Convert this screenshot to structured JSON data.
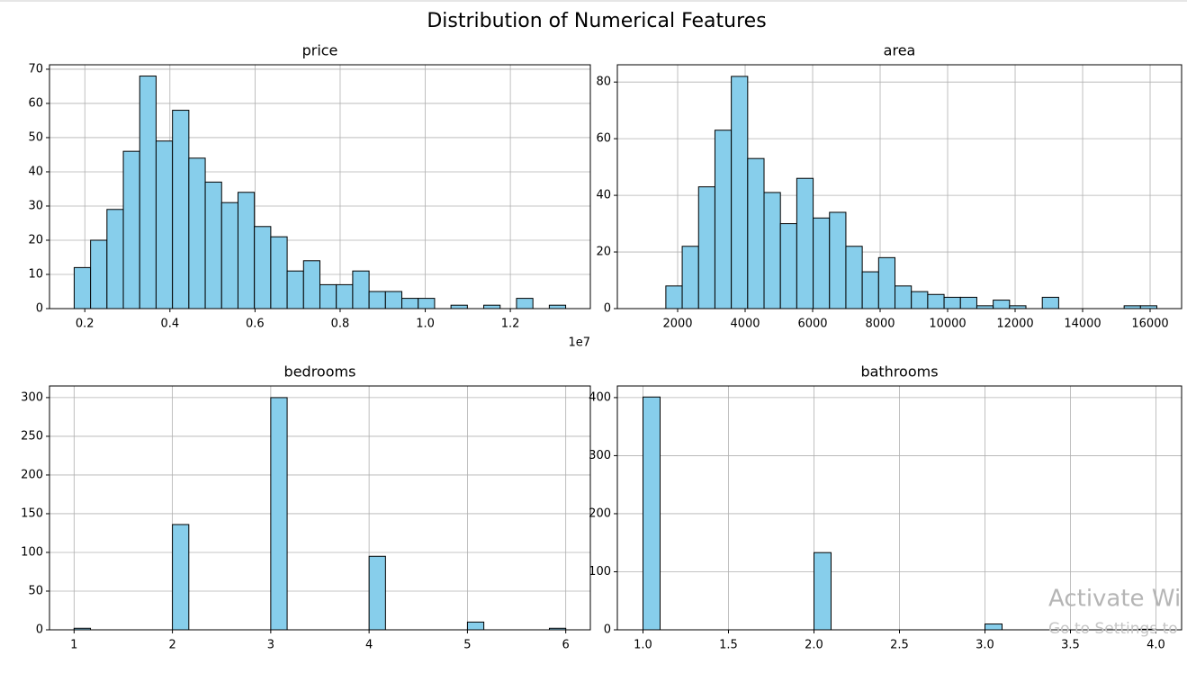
{
  "title": "Distribution of Numerical Features",
  "chart_data": [
    {
      "type": "histogram",
      "title": "price",
      "x_offset_label": "1e7",
      "bins": [
        0.175,
        0.2135,
        0.252,
        0.2905,
        0.329,
        0.3675,
        0.406,
        0.4445,
        0.483,
        0.5215,
        0.56,
        0.5985,
        0.637,
        0.6755,
        0.714,
        0.7525,
        0.791,
        0.8295,
        0.868,
        0.9065,
        0.945,
        0.9835,
        1.022,
        1.0605,
        1.099,
        1.1375,
        1.176,
        1.2145,
        1.253,
        1.2915,
        1.33
      ],
      "values": [
        12,
        20,
        29,
        46,
        68,
        49,
        58,
        44,
        37,
        31,
        34,
        24,
        21,
        11,
        14,
        7,
        7,
        11,
        5,
        5,
        3,
        3,
        0,
        1,
        0,
        1,
        0,
        3,
        0,
        1
      ],
      "color": "#87ceeb",
      "edgecolor": "#000000",
      "xlim": [
        0.117,
        1.388
      ],
      "ylim": [
        0,
        71.3
      ],
      "xticks": [
        0.2,
        0.4,
        0.6,
        0.8,
        {
          "value": 1,
          "label": "1.0"
        },
        1.2
      ],
      "yticks": [
        0,
        10,
        20,
        30,
        40,
        50,
        60,
        70
      ],
      "grid": true
    },
    {
      "type": "histogram",
      "title": "area",
      "bins": [
        1650,
        2135,
        2620,
        3105,
        3590,
        4075,
        4560,
        5045,
        5530,
        6015,
        6500,
        6985,
        7470,
        7955,
        8440,
        8925,
        9410,
        9895,
        10380,
        10865,
        11350,
        11835,
        12320,
        12805,
        13290,
        13775,
        14260,
        14745,
        15230,
        15715,
        16200
      ],
      "values": [
        8,
        22,
        43,
        63,
        82,
        53,
        41,
        30,
        46,
        32,
        34,
        22,
        13,
        18,
        8,
        6,
        5,
        4,
        4,
        1,
        3,
        1,
        0,
        4,
        0,
        0,
        0,
        0,
        1,
        1
      ],
      "color": "#87ceeb",
      "edgecolor": "#000000",
      "xlim": [
        213,
        16933
      ],
      "ylim": [
        0,
        86.1
      ],
      "xticks": [
        2000,
        4000,
        6000,
        8000,
        10000,
        12000,
        14000,
        16000
      ],
      "yticks": [
        0,
        20,
        40,
        60,
        80
      ],
      "grid": true
    },
    {
      "type": "histogram",
      "title": "bedrooms",
      "bins": [
        1,
        1.1667,
        1.3333,
        1.5,
        1.6667,
        1.8333,
        2,
        2.1667,
        2.3333,
        2.5,
        2.6667,
        2.8333,
        3,
        3.1667,
        3.3333,
        3.5,
        3.6667,
        3.8333,
        4,
        4.1667,
        4.3333,
        4.5,
        4.6667,
        4.8333,
        5,
        5.1667,
        5.3333,
        5.5,
        5.6667,
        5.8333,
        6
      ],
      "values": [
        2,
        0,
        0,
        0,
        0,
        0,
        136,
        0,
        0,
        0,
        0,
        0,
        300,
        0,
        0,
        0,
        0,
        0,
        95,
        0,
        0,
        0,
        0,
        0,
        10,
        0,
        0,
        0,
        0,
        2
      ],
      "color": "#87ceeb",
      "edgecolor": "#000000",
      "xlim": [
        0.75,
        6.25
      ],
      "ylim": [
        0,
        315
      ],
      "xticks": [
        1,
        2,
        3,
        4,
        5,
        6
      ],
      "yticks": [
        0,
        50,
        100,
        150,
        200,
        250,
        300
      ],
      "grid": true
    },
    {
      "type": "histogram",
      "title": "bathrooms",
      "bins": [
        1,
        1.1,
        1.2,
        1.3,
        1.4,
        1.5,
        1.6,
        1.7,
        1.8,
        1.9,
        2,
        2.1,
        2.2,
        2.3,
        2.4,
        2.5,
        2.6,
        2.7,
        2.8,
        2.9,
        3,
        3.1,
        3.2,
        3.3,
        3.4,
        3.5,
        3.6,
        3.7,
        3.8,
        3.9,
        4
      ],
      "values": [
        401,
        0,
        0,
        0,
        0,
        0,
        0,
        0,
        0,
        0,
        133,
        0,
        0,
        0,
        0,
        0,
        0,
        0,
        0,
        0,
        10,
        0,
        0,
        0,
        0,
        0,
        0,
        0,
        0,
        1
      ],
      "color": "#87ceeb",
      "edgecolor": "#000000",
      "xlim": [
        0.85,
        4.15
      ],
      "ylim": [
        0,
        420
      ],
      "xticks": [
        {
          "value": 1,
          "label": "1.0"
        },
        1.5,
        {
          "value": 2,
          "label": "2.0"
        },
        2.5,
        {
          "value": 3,
          "label": "3.0"
        },
        3.5,
        {
          "value": 4,
          "label": "4.0"
        }
      ],
      "yticks": [
        0,
        100,
        200,
        300,
        400
      ],
      "grid": true
    }
  ],
  "watermark": {
    "line1": "Activate Wi",
    "line2": "Go to Settings to"
  }
}
